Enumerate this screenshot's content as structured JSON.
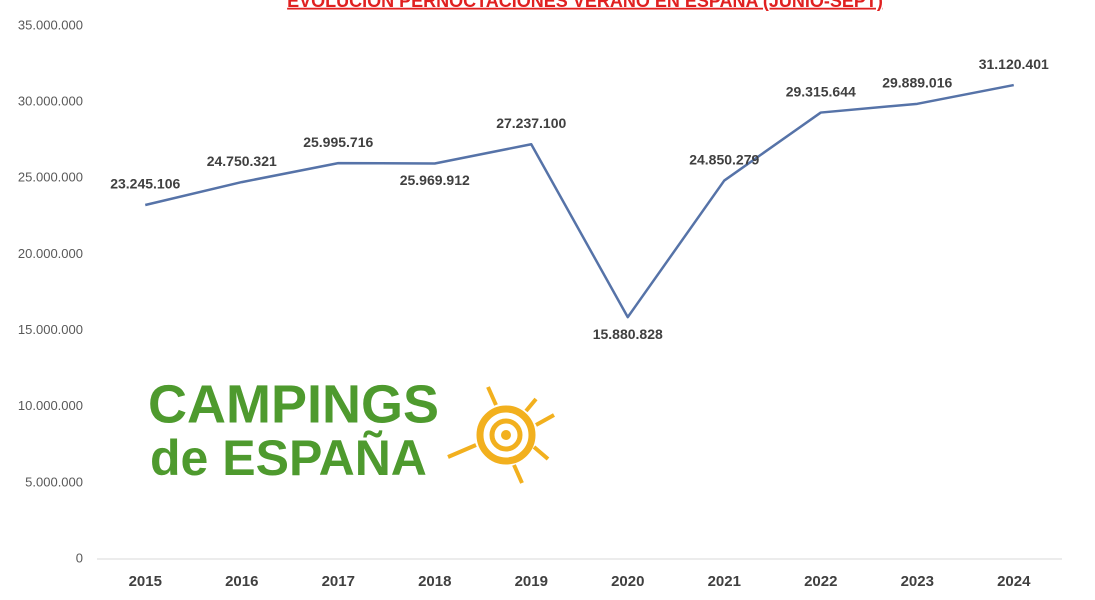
{
  "chart_data": {
    "type": "line",
    "title": "EVOLUCIÓN PERNOCTACIONES VERANO EN ESPAÑA (JUNIO-SEPT)",
    "categories": [
      "2015",
      "2016",
      "2017",
      "2018",
      "2019",
      "2020",
      "2021",
      "2022",
      "2023",
      "2024"
    ],
    "values": [
      23245106,
      24750321,
      25995716,
      25969912,
      27237100,
      15880828,
      24850279,
      29315644,
      29889016,
      31120401
    ],
    "value_labels": [
      "23.245.106",
      "24.750.321",
      "25.995.716",
      "25.969.912",
      "27.237.100",
      "15.880.828",
      "24.850.279",
      "29.315.644",
      "29.889.016",
      "31.120.401"
    ],
    "color": "#5673a8",
    "ylim": [
      0,
      35000000
    ],
    "yticks": [
      0,
      {
        "value": 5000000,
        "label": "5.000.000"
      },
      {
        "value": 10000000,
        "label": "10.000.000"
      },
      {
        "value": 15000000,
        "label": "15.000.000"
      },
      {
        "value": 20000000,
        "label": "20.000.000"
      },
      {
        "value": 25000000,
        "label": "25.000.000"
      },
      {
        "value": 30000000,
        "label": "30.000.000"
      },
      {
        "value": 35000000,
        "label": "35.000.000"
      }
    ],
    "grid": false
  },
  "logo": {
    "line1": "CAMPINGS",
    "line2": "de ESPAÑA"
  }
}
